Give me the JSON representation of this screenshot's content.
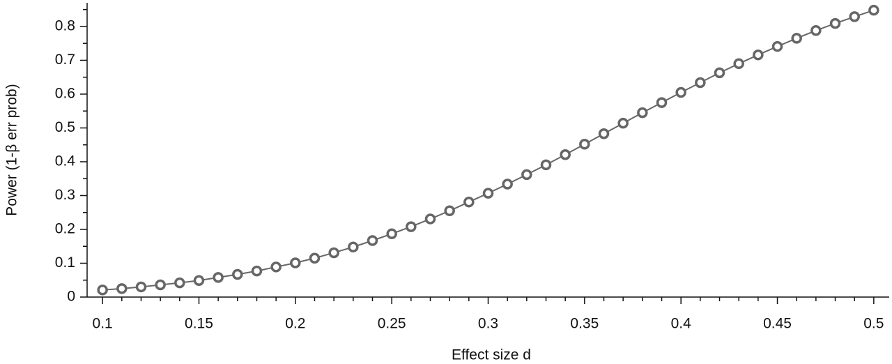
{
  "chart_data": {
    "type": "line",
    "xlabel": "Effect size d",
    "ylabel": "Power (1-β err prob)",
    "x": [
      0.1,
      0.11,
      0.12,
      0.13,
      0.14,
      0.15,
      0.16,
      0.17,
      0.18,
      0.19,
      0.2,
      0.21,
      0.22,
      0.23,
      0.24,
      0.25,
      0.26,
      0.27,
      0.28,
      0.29,
      0.3,
      0.31,
      0.32,
      0.33,
      0.34,
      0.35,
      0.36,
      0.37,
      0.38,
      0.39,
      0.4,
      0.41,
      0.42,
      0.43,
      0.44,
      0.45,
      0.46,
      0.47,
      0.48,
      0.49,
      0.5
    ],
    "series": [
      {
        "color": "#666666",
        "values": [
          0.021,
          0.025,
          0.03,
          0.036,
          0.042,
          0.049,
          0.058,
          0.067,
          0.077,
          0.089,
          0.101,
          0.115,
          0.131,
          0.148,
          0.167,
          0.187,
          0.208,
          0.231,
          0.255,
          0.281,
          0.307,
          0.334,
          0.362,
          0.391,
          0.421,
          0.452,
          0.483,
          0.514,
          0.545,
          0.575,
          0.605,
          0.634,
          0.663,
          0.69,
          0.716,
          0.741,
          0.765,
          0.788,
          0.809,
          0.829,
          0.848
        ]
      }
    ],
    "xlim": [
      0.092,
      0.508
    ],
    "ylim": [
      0,
      0.87
    ],
    "xticks": [
      0.1,
      0.15,
      0.2,
      0.25,
      0.3,
      0.35,
      0.4,
      0.45,
      0.5
    ],
    "yticks": [
      0,
      0.1,
      0.2,
      0.3,
      0.4,
      0.5,
      0.6,
      0.7,
      0.8
    ],
    "xminorticks": [
      0.11,
      0.12,
      0.13,
      0.14,
      0.16,
      0.17,
      0.18,
      0.19,
      0.21,
      0.22,
      0.23,
      0.24,
      0.26,
      0.27,
      0.28,
      0.29,
      0.31,
      0.32,
      0.33,
      0.34,
      0.36,
      0.37,
      0.38,
      0.39,
      0.41,
      0.42,
      0.43,
      0.44,
      0.46,
      0.47,
      0.48,
      0.49
    ],
    "yminorticks": [
      0.05,
      0.15,
      0.25,
      0.35,
      0.45,
      0.55,
      0.65,
      0.75,
      0.85
    ]
  }
}
